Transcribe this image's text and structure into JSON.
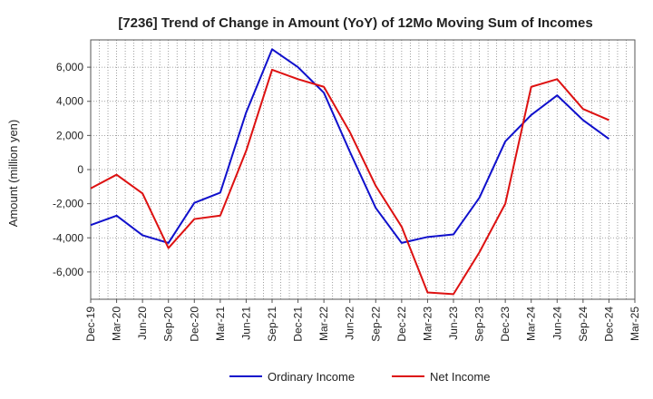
{
  "chart_data": {
    "type": "line",
    "title": "[7236]  Trend of Change in Amount (YoY) of 12Mo Moving Sum of Incomes",
    "ylabel": "Amount (million yen)",
    "xlabel": "",
    "ylim": [
      -7600,
      7600
    ],
    "yticks": [
      -6000,
      -4000,
      -2000,
      0,
      2000,
      4000,
      6000
    ],
    "ytick_labels": [
      "-6,000",
      "-4,000",
      "-2,000",
      "0",
      "2,000",
      "4,000",
      "6,000"
    ],
    "x": [
      "Dec-19",
      "Mar-20",
      "Jun-20",
      "Sep-20",
      "Dec-20",
      "Mar-21",
      "Jun-21",
      "Sep-21",
      "Dec-21",
      "Mar-22",
      "Jun-22",
      "Sep-22",
      "Dec-22",
      "Mar-23",
      "Jun-23",
      "Sep-23",
      "Dec-23",
      "Mar-24",
      "Jun-24",
      "Sep-24",
      "Dec-24",
      "Mar-25"
    ],
    "grid": true,
    "legend": "bottom",
    "series": [
      {
        "name": "Ordinary Income",
        "color": "#1010cc",
        "values": [
          -3250,
          -2700,
          -3850,
          -4300,
          -1950,
          -1350,
          3350,
          7050,
          6000,
          4500,
          1050,
          -2250,
          -4300,
          -3950,
          -3800,
          -1650,
          1650,
          3200,
          4350,
          2900,
          1800,
          null
        ]
      },
      {
        "name": "Net Income",
        "color": "#dd1111",
        "values": [
          -1100,
          -300,
          -1400,
          -4600,
          -2900,
          -2700,
          1100,
          5850,
          5300,
          4850,
          2200,
          -950,
          -3350,
          -7200,
          -7300,
          -4850,
          -2000,
          4850,
          5300,
          3550,
          2900,
          null
        ]
      }
    ]
  }
}
